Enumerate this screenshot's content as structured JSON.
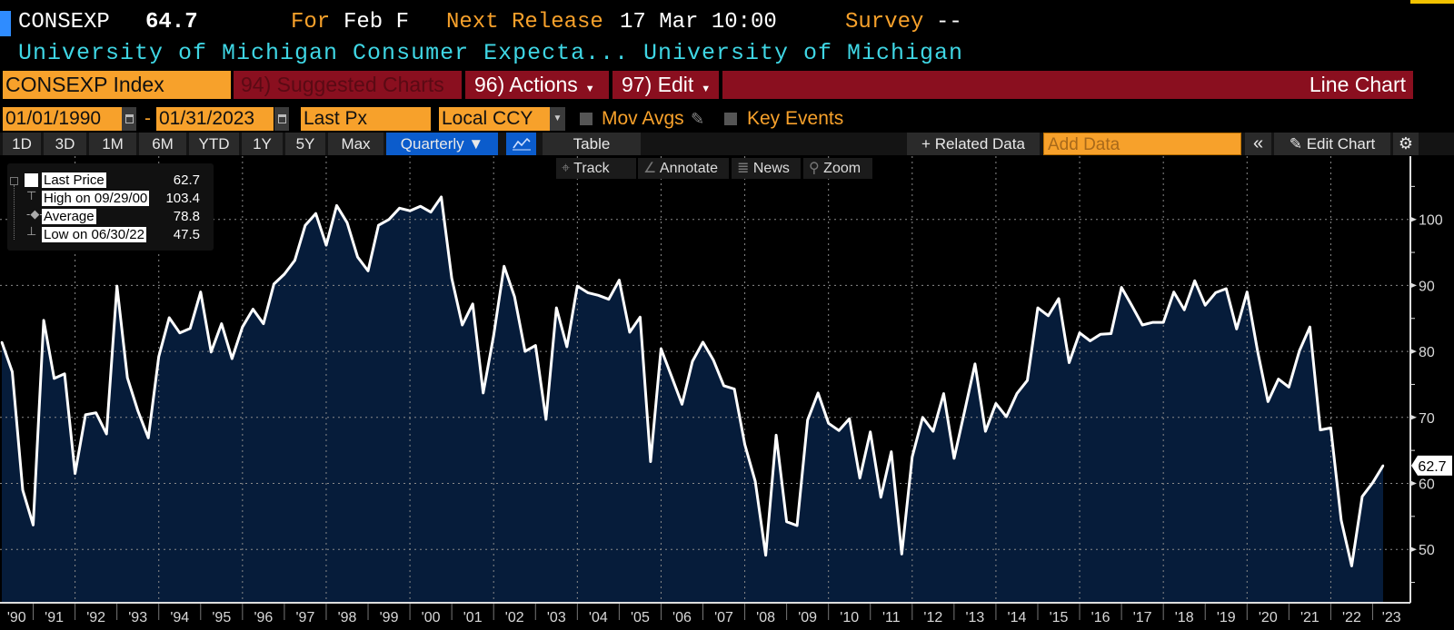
{
  "header": {
    "ticker": "CONSEXP",
    "last_value": "64.7",
    "for_label": "For",
    "for_period": "Feb F",
    "next_release_label": "Next Release",
    "next_release_value": "17 Mar 10:00",
    "survey_label": "Survey",
    "survey_value": "--",
    "description": "University of Michigan Consumer Expecta...",
    "source": "University of Michigan"
  },
  "command_bar": {
    "security": "CONSEXP Index",
    "suggested_charts": "94) Suggested Charts",
    "actions": "96) Actions",
    "edit": "97) Edit",
    "view_title": "Line Chart"
  },
  "controls": {
    "start_date": "01/01/1990",
    "date_separator": "-",
    "end_date": "01/31/2023",
    "field": "Last Px",
    "currency": "Local CCY",
    "mov_avgs": "Mov Avgs",
    "key_events": "Key Events"
  },
  "toolbar": {
    "periods": [
      "1D",
      "3D",
      "1M",
      "6M",
      "YTD",
      "1Y",
      "5Y",
      "Max"
    ],
    "frequency": "Quarterly ▼",
    "table": "Table",
    "related_data": "+ Related Data",
    "add_data_placeholder": "Add Data",
    "collapse": "«",
    "edit_chart": "Edit Chart"
  },
  "chart_tools": {
    "track": "Track",
    "annotate": "Annotate",
    "news": "News",
    "zoom": "Zoom"
  },
  "colors": {
    "orange": "#f7a12b",
    "dark_red": "#8a0f1f",
    "cyan": "#3fd6e4",
    "blue": "#0b5ccc",
    "area_fill": "#061c3a",
    "line": "#ffffff"
  },
  "chart_data": {
    "type": "area",
    "title": "",
    "xlabel": "",
    "ylabel": "",
    "frequency": "Quarterly",
    "ylim": [
      42,
      107
    ],
    "y_ticks": [
      50,
      60,
      70,
      80,
      90,
      100
    ],
    "grid": true,
    "legend_position": "top-left",
    "last_value_tag": "62.7",
    "x_tick_labels": [
      "'90",
      "'91",
      "'92",
      "'93",
      "'94",
      "'95",
      "'96",
      "'97",
      "'98",
      "'99",
      "'00",
      "'01",
      "'02",
      "'03",
      "'04",
      "'05",
      "'06",
      "'07",
      "'08",
      "'09",
      "'10",
      "'11",
      "'12",
      "'13",
      "'14",
      "'15",
      "'16",
      "'17",
      "'18",
      "'19",
      "'20",
      "'21",
      "'22",
      "'23"
    ],
    "legend": [
      {
        "label": "Last Price",
        "value": "62.7"
      },
      {
        "label": "High on 09/29/00",
        "value": "103.4"
      },
      {
        "label": "Average",
        "value": "78.8"
      },
      {
        "label": "Low on 06/30/22",
        "value": "47.5"
      }
    ],
    "x": [
      "1990Q1",
      "1990Q2",
      "1990Q3",
      "1990Q4",
      "1991Q1",
      "1991Q2",
      "1991Q3",
      "1991Q4",
      "1992Q1",
      "1992Q2",
      "1992Q3",
      "1992Q4",
      "1993Q1",
      "1993Q2",
      "1993Q3",
      "1993Q4",
      "1994Q1",
      "1994Q2",
      "1994Q3",
      "1994Q4",
      "1995Q1",
      "1995Q2",
      "1995Q3",
      "1995Q4",
      "1996Q1",
      "1996Q2",
      "1996Q3",
      "1996Q4",
      "1997Q1",
      "1997Q2",
      "1997Q3",
      "1997Q4",
      "1998Q1",
      "1998Q2",
      "1998Q3",
      "1998Q4",
      "1999Q1",
      "1999Q2",
      "1999Q3",
      "1999Q4",
      "2000Q1",
      "2000Q2",
      "2000Q3",
      "2000Q4",
      "2001Q1",
      "2001Q2",
      "2001Q3",
      "2001Q4",
      "2002Q1",
      "2002Q2",
      "2002Q3",
      "2002Q4",
      "2003Q1",
      "2003Q2",
      "2003Q3",
      "2003Q4",
      "2004Q1",
      "2004Q2",
      "2004Q3",
      "2004Q4",
      "2005Q1",
      "2005Q2",
      "2005Q3",
      "2005Q4",
      "2006Q1",
      "2006Q2",
      "2006Q3",
      "2006Q4",
      "2007Q1",
      "2007Q2",
      "2007Q3",
      "2007Q4",
      "2008Q1",
      "2008Q2",
      "2008Q3",
      "2008Q4",
      "2009Q1",
      "2009Q2",
      "2009Q3",
      "2009Q4",
      "2010Q1",
      "2010Q2",
      "2010Q3",
      "2010Q4",
      "2011Q1",
      "2011Q2",
      "2011Q3",
      "2011Q4",
      "2012Q1",
      "2012Q2",
      "2012Q3",
      "2012Q4",
      "2013Q1",
      "2013Q2",
      "2013Q3",
      "2013Q4",
      "2014Q1",
      "2014Q2",
      "2014Q3",
      "2014Q4",
      "2015Q1",
      "2015Q2",
      "2015Q3",
      "2015Q4",
      "2016Q1",
      "2016Q2",
      "2016Q3",
      "2016Q4",
      "2017Q1",
      "2017Q2",
      "2017Q3",
      "2017Q4",
      "2018Q1",
      "2018Q2",
      "2018Q3",
      "2018Q4",
      "2019Q1",
      "2019Q2",
      "2019Q3",
      "2019Q4",
      "2020Q1",
      "2020Q2",
      "2020Q3",
      "2020Q4",
      "2021Q1",
      "2021Q2",
      "2021Q3",
      "2021Q4",
      "2022Q1",
      "2022Q2",
      "2022Q3",
      "2022Q4",
      "2023Q1"
    ],
    "series": [
      {
        "name": "Last Price",
        "values": [
          81.4,
          76.9,
          59,
          53.7,
          84.7,
          75.9,
          76.6,
          61.5,
          70.4,
          70.7,
          67.5,
          89.9,
          76,
          71,
          66.9,
          79.2,
          85.1,
          82.8,
          83.5,
          89,
          79.9,
          84.2,
          78.9,
          83.7,
          86.4,
          84.2,
          90.2,
          91.7,
          93.8,
          99.1,
          100.9,
          96.1,
          102.1,
          99.5,
          94.3,
          92.2,
          99.1,
          100,
          101.7,
          101.3,
          102,
          101.1,
          103.4,
          91.1,
          84,
          87.2,
          73.7,
          82.4,
          92.9,
          88.3,
          80,
          80.9,
          69.7,
          86.6,
          80.7,
          89.9,
          88.9,
          88.5,
          87.9,
          90.8,
          82.9,
          85.2,
          63.3,
          80.4,
          76.2,
          72,
          78.5,
          81.4,
          78.7,
          74.8,
          74.3,
          65.9,
          60.3,
          49.1,
          67.3,
          54.2,
          53.6,
          69.6,
          73.7,
          69.1,
          68,
          69.8,
          60.8,
          67.8,
          57.9,
          64.8,
          49.3,
          64,
          70,
          67.9,
          73.6,
          63.8,
          70.9,
          78.1,
          67.9,
          72.1,
          70.1,
          73.6,
          75.6,
          86.6,
          85.4,
          88,
          78.3,
          82.8,
          81.6,
          82.6,
          82.7,
          89.7,
          86.9,
          84,
          84.4,
          84.4,
          89,
          86.3,
          90.7,
          87,
          88.9,
          89.5,
          83.4,
          89,
          80.1,
          72.4,
          75.8,
          74.6,
          80.1,
          83.7,
          68.1,
          68.4,
          54.4,
          47.5,
          58,
          60.1,
          62.7
        ]
      }
    ]
  }
}
